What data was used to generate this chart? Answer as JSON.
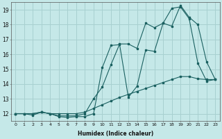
{
  "xlabel": "Humidex (Indice chaleur)",
  "bg_color": "#c5e8e8",
  "grid_color": "#a8d0d0",
  "line_color": "#1a6060",
  "xlim": [
    -0.5,
    23.5
  ],
  "ylim": [
    11.5,
    19.5
  ],
  "xticks": [
    0,
    1,
    2,
    3,
    4,
    5,
    6,
    7,
    8,
    9,
    10,
    11,
    12,
    13,
    14,
    15,
    16,
    17,
    18,
    19,
    20,
    21,
    22,
    23
  ],
  "yticks": [
    12,
    13,
    14,
    15,
    16,
    17,
    18,
    19
  ],
  "line1_x": [
    0,
    1,
    2,
    3,
    4,
    5,
    6,
    7,
    8,
    9,
    10,
    11,
    12,
    13,
    14,
    15,
    16,
    17,
    18,
    19,
    20,
    21,
    22,
    23
  ],
  "line1_y": [
    12.0,
    12.0,
    12.0,
    12.1,
    12.0,
    11.85,
    11.85,
    11.85,
    12.0,
    13.0,
    13.8,
    15.3,
    16.7,
    16.7,
    16.4,
    18.1,
    17.8,
    18.1,
    17.9,
    19.3,
    18.5,
    18.0,
    15.5,
    14.3
  ],
  "line2_x": [
    0,
    1,
    2,
    3,
    4,
    5,
    6,
    7,
    8,
    9,
    10,
    11,
    12,
    13,
    14,
    15,
    16,
    17,
    18,
    19,
    20,
    21,
    22,
    23
  ],
  "line2_y": [
    12.0,
    12.0,
    11.9,
    12.1,
    12.0,
    11.8,
    11.75,
    11.8,
    11.8,
    12.0,
    15.1,
    16.6,
    16.65,
    13.1,
    13.85,
    16.3,
    16.2,
    18.1,
    19.1,
    19.2,
    18.4,
    15.4,
    14.2,
    14.3
  ],
  "line3_x": [
    0,
    1,
    2,
    3,
    4,
    5,
    6,
    7,
    8,
    9,
    10,
    11,
    12,
    13,
    14,
    15,
    16,
    17,
    18,
    19,
    20,
    21,
    22,
    23
  ],
  "line3_y": [
    12.0,
    12.0,
    12.0,
    12.1,
    12.0,
    12.0,
    12.0,
    12.0,
    12.1,
    12.35,
    12.6,
    12.85,
    13.1,
    13.3,
    13.5,
    13.7,
    13.9,
    14.1,
    14.3,
    14.5,
    14.5,
    14.35,
    14.3,
    14.3
  ]
}
